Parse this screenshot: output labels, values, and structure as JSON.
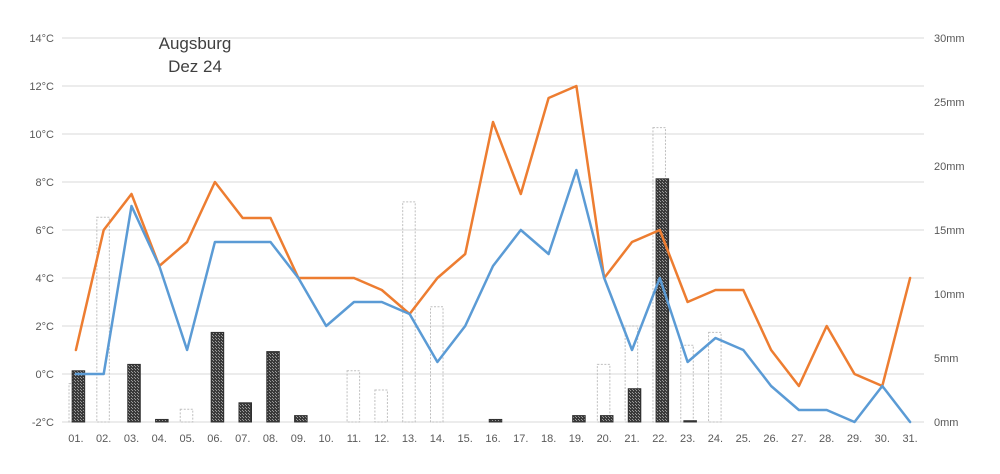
{
  "chart_data": {
    "type": "combo",
    "title_lines": [
      "Augsburg",
      "Dez 24"
    ],
    "categories": [
      "01.",
      "02.",
      "03.",
      "04.",
      "05.",
      "06.",
      "07.",
      "08.",
      "09.",
      "10.",
      "11.",
      "12.",
      "13.",
      "14.",
      "15.",
      "16.",
      "17.",
      "18.",
      "19.",
      "20.",
      "21.",
      "22.",
      "23.",
      "24.",
      "25.",
      "26.",
      "27.",
      "28.",
      "29.",
      "30.",
      "31."
    ],
    "y_left": {
      "unit": "°C",
      "min": -2,
      "max": 14,
      "step": 2,
      "tick_labels": [
        "-2°C",
        "0°C",
        "2°C",
        "4°C",
        "6°C",
        "8°C",
        "10°C",
        "12°C",
        "14°C"
      ]
    },
    "y_right": {
      "unit": "mm",
      "min": 0,
      "max": 30,
      "step": 5,
      "tick_labels": [
        "0mm",
        "5mm",
        "10mm",
        "15mm",
        "20mm",
        "25mm",
        "30mm"
      ]
    },
    "grid": true,
    "series": [
      {
        "kind": "bar_outline",
        "axis": "right",
        "color": "#bfbfbf",
        "values": [
          3.0,
          16.0,
          0,
          0,
          1.0,
          0,
          0,
          0,
          0,
          0,
          4.0,
          2.5,
          17.2,
          9.0,
          0,
          0,
          0,
          0,
          0,
          4.5,
          7.5,
          23.0,
          6.0,
          7.0,
          0,
          0,
          0,
          0,
          0,
          0,
          0
        ]
      },
      {
        "kind": "bar_filled",
        "axis": "right",
        "color": "#303030",
        "values": [
          4.0,
          0,
          4.5,
          0.2,
          0,
          7.0,
          1.5,
          5.5,
          0.5,
          0,
          0,
          0,
          0,
          0,
          0,
          0.2,
          0,
          0,
          0.5,
          0.5,
          2.6,
          19.0,
          0.1,
          0,
          0,
          0,
          0,
          0,
          0,
          0,
          0
        ]
      },
      {
        "kind": "line",
        "axis": "left",
        "color": "#ED7D31",
        "values": [
          1,
          6,
          7.5,
          4.5,
          5.5,
          8,
          6.5,
          6.5,
          4,
          4,
          4,
          3.5,
          2.5,
          4,
          5,
          10.5,
          7.5,
          11.5,
          12,
          4,
          5.5,
          6,
          3,
          3.5,
          3.5,
          1,
          -0.5,
          2,
          0,
          -0.5,
          4
        ]
      },
      {
        "kind": "line",
        "axis": "left",
        "color": "#5B9BD5",
        "values": [
          0,
          0,
          7,
          4.5,
          1,
          5.5,
          5.5,
          5.5,
          4,
          2,
          3,
          3,
          2.5,
          0.5,
          2,
          4.5,
          6,
          5,
          8.5,
          4,
          1,
          4,
          0.5,
          1.5,
          1,
          -0.5,
          -1.5,
          -1.5,
          -2,
          -0.5,
          -2
        ]
      }
    ]
  }
}
